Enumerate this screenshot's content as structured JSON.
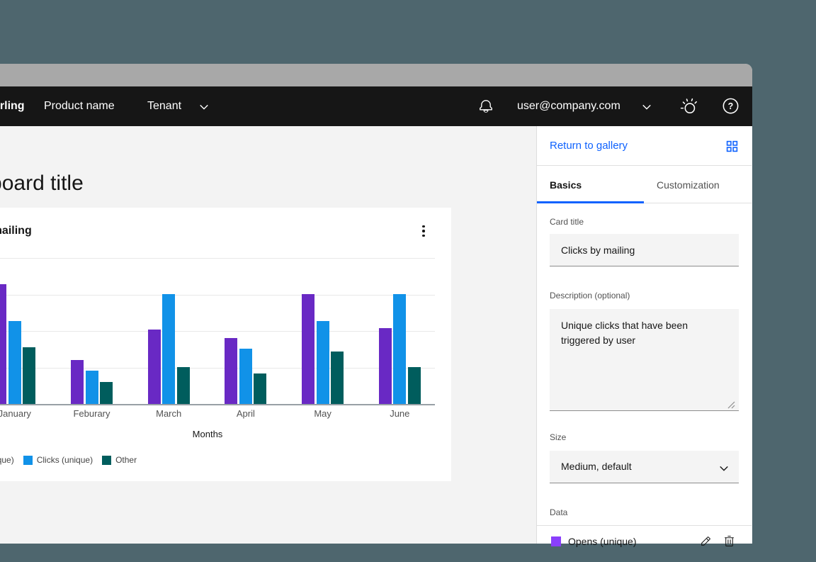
{
  "window": {
    "titlebar_color": "#a8a8a8",
    "desktop_color": "#4e666e"
  },
  "header": {
    "brand": "Sterling",
    "nav_items": [
      {
        "label": "Product name"
      },
      {
        "label": "Tenant",
        "has_chevron": true
      }
    ],
    "user_email": "user@company.com",
    "icons": [
      "notification-bell",
      "chevron-down",
      "idea",
      "help"
    ]
  },
  "page": {
    "title": "Dashboard title"
  },
  "card": {
    "title": "Clicks by mailing"
  },
  "chart_data": {
    "type": "bar",
    "title": "Clicks by mailing",
    "categories": [
      "January",
      "Feburary",
      "March",
      "April",
      "May",
      "June"
    ],
    "series": [
      {
        "name": "Opens (unique)",
        "color": "#6929c4",
        "values": [
          82,
          30,
          51,
          45,
          75,
          52
        ]
      },
      {
        "name": "Clicks (unique)",
        "color": "#1192e8",
        "values": [
          57,
          23,
          75,
          38,
          57,
          75
        ]
      },
      {
        "name": "Other",
        "color": "#005d5d",
        "values": [
          39,
          15,
          25,
          21,
          36,
          25
        ]
      }
    ],
    "xlabel": "Months",
    "ylabel": "",
    "ylim": [
      0,
      100
    ],
    "gridlines": true,
    "legend_position": "bottom",
    "note": "y-axis labels clipped off the left edge of the screenshot; values expressed as percent of top gridline"
  },
  "panel": {
    "return_link": "Return to gallery",
    "tabs": [
      {
        "label": "Basics",
        "active": true
      },
      {
        "label": "Customization",
        "active": false
      }
    ],
    "fields": {
      "card_title": {
        "label": "Card title",
        "value": "Clicks by mailing"
      },
      "description": {
        "label": "Description (optional)",
        "value": "Unique clicks that have been triggered by user"
      },
      "size": {
        "label": "Size",
        "value": "Medium, default"
      },
      "data_section": {
        "label": "Data",
        "item": {
          "label": "Opens (unique)",
          "color": "#8a3ffc"
        }
      }
    }
  },
  "colors": {
    "accent_blue": "#0f62fe",
    "header_bg": "#161616",
    "content_bg": "#f3f3f3",
    "chart_purple": "#6929c4",
    "chart_blue": "#1192e8",
    "chart_teal": "#005d5d"
  }
}
